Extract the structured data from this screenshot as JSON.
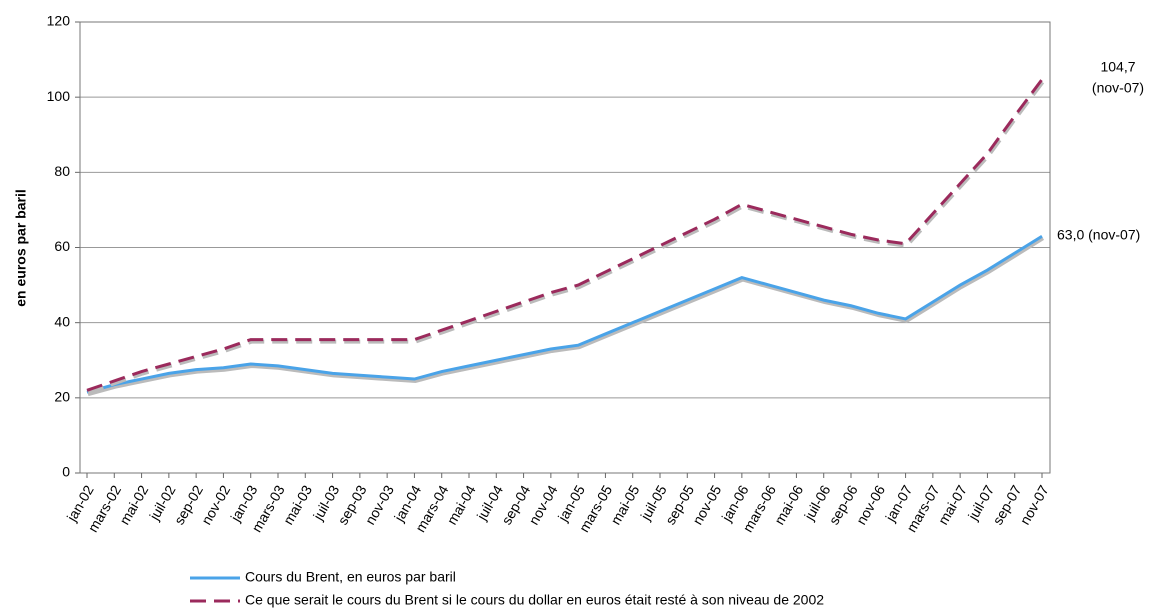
{
  "chart_data": {
    "type": "line",
    "ylabel": "en euros par baril",
    "categories": [
      "jan-02",
      "mars-02",
      "mai-02",
      "juil-02",
      "sep-02",
      "nov-02",
      "jan-03",
      "mars-03",
      "mai-03",
      "juil-03",
      "sep-03",
      "nov-03",
      "jan-04",
      "mars-04",
      "mai-04",
      "juil-04",
      "sep-04",
      "nov-04",
      "jan-05",
      "mars-05",
      "mai-05",
      "juil-05",
      "sep-05",
      "nov-05",
      "jan-06",
      "mars-06",
      "mai-06",
      "juil-06",
      "sep-06",
      "nov-06",
      "jan-07",
      "mars-07",
      "mai-07",
      "juil-07",
      "sep-07",
      "nov-07"
    ],
    "series": [
      {
        "name": "Cours du Brent, en euros par baril",
        "color": "#4aa3e8",
        "line_style": "solid",
        "values": [
          21.5,
          23.5,
          25,
          26.5,
          27.5,
          28,
          29,
          28.5,
          27.5,
          26.5,
          26,
          25.5,
          25,
          27,
          28.5,
          30,
          31.5,
          33,
          34,
          37,
          40,
          43,
          46,
          49,
          52,
          50,
          48,
          46,
          44.5,
          42.5,
          41,
          45.5,
          50,
          54,
          58.5,
          63
        ]
      },
      {
        "name": "Ce que serait le cours du Brent si le cours du dollar en euros était resté à son niveau de 2002",
        "color": "#9b2a5c",
        "line_style": "dashed",
        "values": [
          22,
          24.5,
          27,
          29,
          31,
          33,
          35.5,
          35.5,
          35.5,
          35.5,
          35.5,
          35.5,
          35.5,
          38,
          40.5,
          43,
          45.5,
          48,
          50,
          53.5,
          57,
          60.5,
          64,
          67.5,
          71.5,
          69.5,
          67.5,
          65.5,
          63.5,
          62,
          61,
          69,
          77,
          85,
          95,
          104.7
        ]
      }
    ],
    "annotations": [
      "104,7",
      "(nov-07)",
      "63,0 (nov-07)"
    ],
    "ylim": [
      0,
      120
    ],
    "yticks": [
      0,
      20,
      40,
      60,
      80,
      100,
      120
    ],
    "grid": true
  }
}
